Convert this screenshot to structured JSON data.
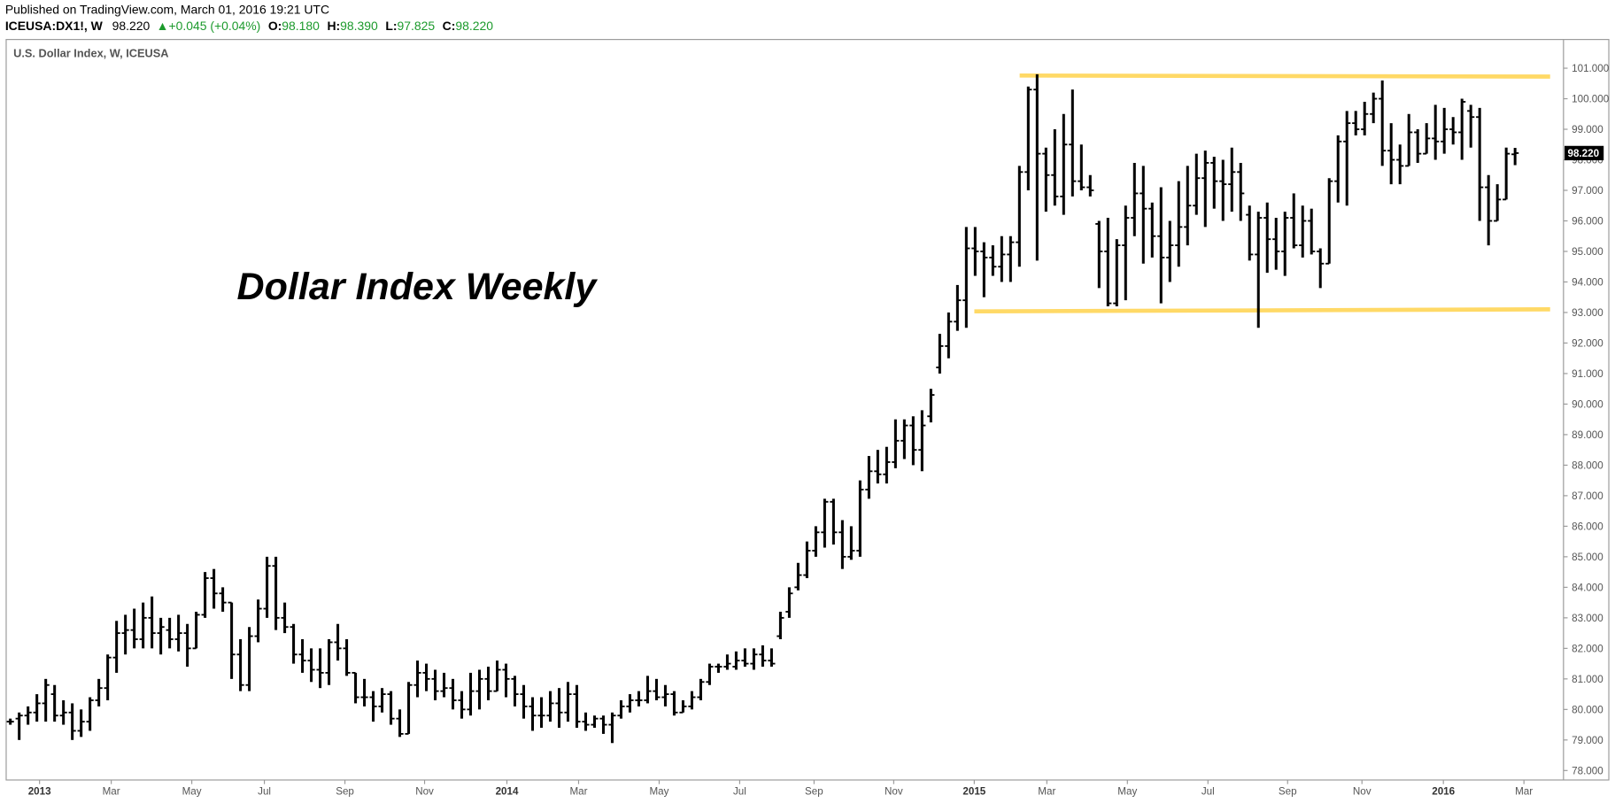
{
  "header": {
    "published": "Published on TradingView.com, March 01, 2016 19:21 UTC",
    "symbol": "ICEUSA:DX1!, W",
    "last": "98.220",
    "change": "+0.045 (+0.04%)",
    "o_label": "O:",
    "open": "98.180",
    "h_label": "H:",
    "high": "98.390",
    "l_label": "L:",
    "low": "97.825",
    "c_label": "C:",
    "close": "98.220"
  },
  "chart_data": {
    "type": "ohlc",
    "title": "U.S. Dollar Index, W, ICEUSA",
    "annotation": "Dollar Index Weekly",
    "color": "#000000",
    "xlim": [
      -0.47,
      175.47
    ],
    "ylim": [
      77.69,
      101.94
    ],
    "xticks": [
      {
        "value": 3.3,
        "label": "2013"
      },
      {
        "value": 11.4,
        "label": "Mar"
      },
      {
        "value": 20.5,
        "label": "May"
      },
      {
        "value": 28.7,
        "label": "Jul"
      },
      {
        "value": 37.8,
        "label": "Sep"
      },
      {
        "value": 46.8,
        "label": "Nov"
      },
      {
        "value": 56.1,
        "label": "2014"
      },
      {
        "value": 64.2,
        "label": "Mar"
      },
      {
        "value": 73.3,
        "label": "May"
      },
      {
        "value": 82.4,
        "label": "Jul"
      },
      {
        "value": 90.8,
        "label": "Sep"
      },
      {
        "value": 99.8,
        "label": "Nov"
      },
      {
        "value": 108.9,
        "label": "2015"
      },
      {
        "value": 117.1,
        "label": "Mar"
      },
      {
        "value": 126.2,
        "label": "May"
      },
      {
        "value": 135.3,
        "label": "Jul"
      },
      {
        "value": 144.3,
        "label": "Sep"
      },
      {
        "value": 152.7,
        "label": "Nov"
      },
      {
        "value": 161.9,
        "label": "2016"
      },
      {
        "value": 171,
        "label": "Mar"
      }
    ],
    "yticks": [
      {
        "value": 78,
        "label": "78.000"
      },
      {
        "value": 79,
        "label": "79.000"
      },
      {
        "value": 80,
        "label": "80.000"
      },
      {
        "value": 81,
        "label": "81.000"
      },
      {
        "value": 82,
        "label": "82.000"
      },
      {
        "value": 83,
        "label": "83.000"
      },
      {
        "value": 84,
        "label": "84.000"
      },
      {
        "value": 85,
        "label": "85.000"
      },
      {
        "value": 86,
        "label": "86.000"
      },
      {
        "value": 87,
        "label": "87.000"
      },
      {
        "value": 88,
        "label": "88.000"
      },
      {
        "value": 89,
        "label": "89.000"
      },
      {
        "value": 90,
        "label": "90.000"
      },
      {
        "value": 91,
        "label": "91.000"
      },
      {
        "value": 92,
        "label": "92.000"
      },
      {
        "value": 93,
        "label": "93.000"
      },
      {
        "value": 94,
        "label": "94.000"
      },
      {
        "value": 95,
        "label": "95.000"
      },
      {
        "value": 96,
        "label": "96.000"
      },
      {
        "value": 97,
        "label": "97.000"
      },
      {
        "value": 98,
        "label": "98.000"
      },
      {
        "value": 99,
        "label": "99.000"
      },
      {
        "value": 100,
        "label": "100.000"
      },
      {
        "value": 101,
        "label": "101.000"
      }
    ],
    "last_price": {
      "value": 98.22,
      "label": "98.220"
    },
    "ohlc": [
      [
        79.6,
        79.7,
        79.5,
        79.6
      ],
      [
        79.7,
        79.9,
        79.0,
        79.8
      ],
      [
        79.8,
        80.1,
        79.5,
        79.9
      ],
      [
        79.9,
        80.5,
        79.6,
        80.2
      ],
      [
        80.2,
        81.0,
        79.6,
        80.8
      ],
      [
        80.5,
        80.8,
        79.6,
        79.8
      ],
      [
        79.8,
        80.3,
        79.5,
        79.9
      ],
      [
        79.9,
        80.2,
        79.0,
        79.3
      ],
      [
        79.3,
        80.0,
        79.1,
        79.6
      ],
      [
        79.6,
        80.4,
        79.3,
        80.3
      ],
      [
        80.3,
        81.0,
        80.1,
        80.7
      ],
      [
        80.7,
        81.8,
        80.3,
        81.7
      ],
      [
        81.7,
        82.9,
        81.2,
        82.5
      ],
      [
        82.5,
        83.1,
        81.8,
        82.6
      ],
      [
        82.6,
        83.3,
        82.0,
        82.3
      ],
      [
        82.3,
        83.5,
        82.0,
        83.0
      ],
      [
        83.0,
        83.7,
        82.0,
        82.5
      ],
      [
        82.5,
        83.0,
        81.8,
        82.7
      ],
      [
        82.6,
        83.0,
        82.0,
        82.3
      ],
      [
        82.3,
        83.1,
        81.9,
        82.5
      ],
      [
        82.5,
        82.8,
        81.4,
        82.0
      ],
      [
        82.0,
        83.2,
        82.0,
        83.1
      ],
      [
        83.1,
        84.5,
        83.0,
        84.3
      ],
      [
        84.3,
        84.6,
        83.3,
        83.8
      ],
      [
        83.8,
        84.0,
        83.2,
        83.5
      ],
      [
        83.5,
        83.5,
        81.0,
        81.8
      ],
      [
        81.8,
        82.3,
        80.6,
        80.8
      ],
      [
        80.8,
        82.7,
        80.6,
        82.4
      ],
      [
        82.4,
        83.6,
        82.2,
        83.3
      ],
      [
        83.3,
        85.0,
        83.0,
        84.7
      ],
      [
        84.7,
        85.0,
        82.6,
        83.0
      ],
      [
        83.0,
        83.5,
        82.5,
        82.7
      ],
      [
        82.7,
        82.8,
        81.5,
        81.8
      ],
      [
        81.8,
        82.3,
        81.2,
        81.6
      ],
      [
        81.6,
        82.0,
        80.9,
        81.3
      ],
      [
        81.3,
        82.0,
        80.7,
        81.2
      ],
      [
        81.2,
        82.3,
        80.8,
        82.2
      ],
      [
        82.2,
        82.8,
        81.6,
        82.0
      ],
      [
        82.0,
        82.3,
        81.1,
        81.2
      ],
      [
        81.2,
        81.2,
        80.2,
        80.4
      ],
      [
        80.4,
        81.0,
        80.1,
        80.4
      ],
      [
        80.4,
        80.6,
        79.6,
        80.1
      ],
      [
        80.1,
        80.7,
        79.9,
        80.5
      ],
      [
        80.5,
        80.6,
        79.5,
        79.7
      ],
      [
        79.7,
        80.0,
        79.1,
        79.2
      ],
      [
        79.2,
        80.9,
        79.2,
        80.8
      ],
      [
        80.8,
        81.6,
        80.4,
        81.2
      ],
      [
        81.2,
        81.5,
        80.6,
        81.0
      ],
      [
        81.0,
        81.3,
        80.3,
        80.6
      ],
      [
        80.6,
        81.2,
        80.4,
        80.7
      ],
      [
        80.7,
        81.0,
        80.0,
        80.3
      ],
      [
        80.3,
        80.6,
        79.7,
        80.0
      ],
      [
        80.0,
        81.2,
        79.8,
        80.6
      ],
      [
        80.6,
        81.3,
        80.0,
        81.0
      ],
      [
        81.0,
        81.4,
        80.3,
        80.6
      ],
      [
        80.6,
        81.6,
        80.6,
        81.3
      ],
      [
        81.3,
        81.5,
        80.4,
        81.0
      ],
      [
        81.0,
        81.1,
        80.1,
        80.5
      ],
      [
        80.5,
        80.8,
        79.7,
        80.1
      ],
      [
        80.1,
        80.4,
        79.3,
        79.8
      ],
      [
        79.8,
        80.4,
        79.4,
        79.8
      ],
      [
        79.8,
        80.6,
        79.6,
        80.2
      ],
      [
        80.2,
        80.7,
        79.4,
        79.9
      ],
      [
        79.9,
        80.9,
        79.6,
        80.5
      ],
      [
        80.5,
        80.8,
        79.4,
        79.6
      ],
      [
        79.6,
        79.9,
        79.3,
        79.5
      ],
      [
        79.5,
        79.8,
        79.4,
        79.7
      ],
      [
        79.7,
        79.8,
        79.2,
        79.5
      ],
      [
        79.5,
        79.9,
        78.9,
        79.8
      ],
      [
        79.8,
        80.3,
        79.7,
        80.1
      ],
      [
        80.1,
        80.5,
        79.9,
        80.3
      ],
      [
        80.3,
        80.6,
        80.1,
        80.3
      ],
      [
        80.3,
        81.1,
        80.2,
        80.6
      ],
      [
        80.6,
        81.0,
        80.3,
        80.4
      ],
      [
        80.4,
        80.8,
        80.1,
        80.5
      ],
      [
        80.5,
        80.6,
        79.8,
        79.9
      ],
      [
        79.9,
        80.3,
        79.9,
        80.1
      ],
      [
        80.1,
        80.6,
        80.0,
        80.4
      ],
      [
        80.4,
        81.0,
        80.3,
        80.9
      ],
      [
        80.9,
        81.5,
        80.8,
        81.4
      ],
      [
        81.4,
        81.5,
        81.2,
        81.4
      ],
      [
        81.4,
        81.8,
        81.3,
        81.5
      ],
      [
        81.4,
        81.9,
        81.3,
        81.6
      ],
      [
        81.6,
        82.0,
        81.4,
        81.5
      ],
      [
        81.5,
        82.0,
        81.3,
        81.8
      ],
      [
        81.8,
        82.1,
        81.4,
        81.6
      ],
      [
        81.6,
        82.0,
        81.4,
        81.5
      ],
      [
        82.4,
        83.2,
        82.3,
        83.0
      ],
      [
        83.2,
        84.0,
        83.0,
        83.8
      ],
      [
        84.0,
        84.8,
        83.9,
        84.4
      ],
      [
        84.4,
        85.5,
        84.3,
        85.2
      ],
      [
        85.2,
        86.0,
        85.0,
        85.8
      ],
      [
        85.8,
        86.9,
        85.3,
        86.8
      ],
      [
        86.8,
        86.9,
        85.4,
        85.8
      ],
      [
        85.8,
        86.2,
        84.6,
        85.0
      ],
      [
        85.0,
        86.0,
        84.9,
        85.2
      ],
      [
        85.2,
        87.5,
        85.0,
        87.2
      ],
      [
        87.2,
        88.3,
        86.9,
        87.8
      ],
      [
        87.8,
        88.5,
        87.4,
        87.7
      ],
      [
        87.7,
        88.6,
        87.4,
        88.1
      ],
      [
        88.1,
        89.5,
        87.9,
        88.8
      ],
      [
        88.8,
        89.5,
        88.2,
        89.3
      ],
      [
        89.3,
        89.6,
        88.0,
        88.5
      ],
      [
        88.5,
        89.8,
        87.8,
        89.3
      ],
      [
        89.6,
        90.5,
        89.4,
        90.3
      ],
      [
        91.2,
        92.3,
        91.0,
        91.9
      ],
      [
        91.9,
        93.0,
        91.5,
        92.7
      ],
      [
        92.7,
        93.9,
        92.4,
        93.4
      ],
      [
        93.4,
        95.8,
        92.5,
        95.1
      ],
      [
        95.1,
        95.8,
        94.2,
        95.0
      ],
      [
        95.0,
        95.3,
        93.5,
        94.8
      ],
      [
        94.8,
        95.2,
        94.2,
        94.5
      ],
      [
        94.5,
        95.5,
        94.0,
        94.9
      ],
      [
        94.9,
        95.5,
        94.0,
        95.3
      ],
      [
        95.3,
        97.8,
        94.5,
        97.6
      ],
      [
        97.6,
        100.4,
        97.0,
        100.3
      ],
      [
        100.3,
        100.8,
        94.7,
        98.2
      ],
      [
        98.2,
        98.4,
        96.3,
        97.5
      ],
      [
        97.5,
        99.0,
        96.5,
        96.8
      ],
      [
        96.8,
        99.5,
        96.2,
        98.5
      ],
      [
        98.5,
        100.3,
        96.8,
        97.3
      ],
      [
        97.3,
        98.5,
        97.0,
        97.1
      ],
      [
        97.1,
        97.5,
        96.8,
        97.0
      ],
      [
        95.9,
        96.0,
        93.8,
        95.0
      ],
      [
        95.0,
        96.1,
        93.2,
        93.3
      ],
      [
        93.3,
        95.4,
        93.2,
        95.2
      ],
      [
        95.2,
        96.5,
        93.4,
        96.1
      ],
      [
        96.1,
        97.9,
        95.5,
        96.9
      ],
      [
        96.9,
        97.8,
        94.6,
        96.4
      ],
      [
        96.4,
        96.6,
        94.8,
        95.5
      ],
      [
        95.5,
        97.1,
        93.3,
        94.8
      ],
      [
        94.8,
        96.0,
        94.0,
        95.2
      ],
      [
        95.2,
        97.3,
        94.5,
        95.8
      ],
      [
        95.8,
        97.8,
        95.2,
        96.5
      ],
      [
        96.5,
        98.2,
        96.2,
        97.4
      ],
      [
        97.4,
        98.3,
        95.8,
        97.9
      ],
      [
        97.9,
        98.1,
        96.4,
        97.3
      ],
      [
        97.3,
        98.0,
        96.0,
        97.2
      ],
      [
        97.2,
        98.4,
        96.3,
        97.6
      ],
      [
        97.6,
        97.9,
        96.0,
        96.9
      ],
      [
        96.2,
        96.5,
        94.7,
        94.9
      ],
      [
        94.9,
        96.3,
        92.5,
        96.1
      ],
      [
        96.1,
        96.6,
        94.3,
        95.4
      ],
      [
        95.4,
        96.1,
        94.4,
        95.0
      ],
      [
        95.0,
        96.3,
        94.2,
        96.1
      ],
      [
        96.1,
        96.9,
        95.1,
        95.2
      ],
      [
        95.2,
        96.5,
        94.8,
        96.0
      ],
      [
        96.0,
        96.4,
        94.9,
        95.0
      ],
      [
        95.0,
        95.1,
        93.8,
        94.6
      ],
      [
        94.6,
        97.4,
        94.6,
        97.3
      ],
      [
        97.3,
        98.8,
        96.6,
        98.6
      ],
      [
        98.6,
        99.6,
        96.5,
        99.2
      ],
      [
        99.2,
        99.6,
        98.8,
        99.0
      ],
      [
        99.0,
        99.9,
        98.8,
        99.5
      ],
      [
        99.5,
        100.2,
        99.2,
        100.0
      ],
      [
        100.0,
        100.6,
        97.8,
        98.3
      ],
      [
        98.3,
        99.2,
        97.2,
        98.0
      ],
      [
        98.0,
        98.5,
        97.2,
        97.8
      ],
      [
        97.8,
        99.5,
        97.8,
        98.9
      ],
      [
        98.9,
        99.0,
        97.9,
        98.2
      ],
      [
        98.2,
        99.2,
        98.2,
        98.7
      ],
      [
        98.7,
        99.8,
        98.0,
        98.6
      ],
      [
        98.6,
        99.7,
        98.2,
        99.0
      ],
      [
        99.0,
        99.4,
        98.5,
        98.9
      ],
      [
        98.9,
        100.0,
        98.0,
        99.9
      ],
      [
        99.6,
        99.8,
        98.4,
        99.4
      ],
      [
        99.4,
        99.7,
        96.0,
        97.1
      ],
      [
        97.1,
        97.5,
        95.2,
        96.0
      ],
      [
        96.0,
        97.2,
        96.0,
        96.7
      ],
      [
        96.7,
        98.4,
        96.7,
        98.2
      ],
      [
        98.18,
        98.39,
        97.825,
        98.22
      ]
    ]
  }
}
